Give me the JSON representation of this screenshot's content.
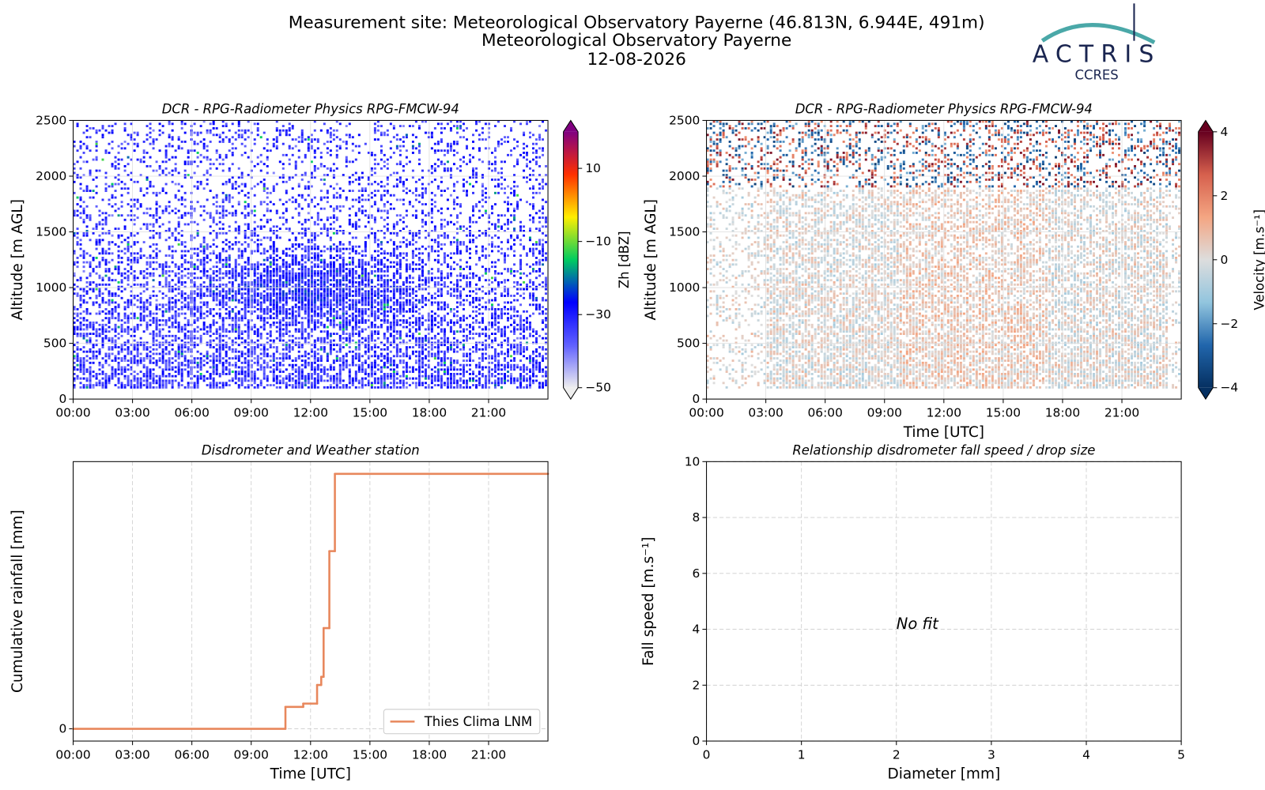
{
  "header": {
    "lines": [
      "Measurement site: Meteorological Observatory Payerne (46.813N, 6.944E, 491m)",
      "Meteorological Observatory Payerne",
      "12-08-2026"
    ]
  },
  "logo": {
    "name": "ACTRIS",
    "sub": "CCRES"
  },
  "chart_data": [
    {
      "type": "heatmap",
      "title": "DCR - RPG-Radiometer Physics RPG-FMCW-94",
      "ylabel": "Altitude [m AGL]",
      "xlim": [
        0,
        24
      ],
      "xticks": [
        {
          "value": 0,
          "label": "00:00"
        },
        {
          "value": 3,
          "label": "03:00"
        },
        {
          "value": 6,
          "label": "06:00"
        },
        {
          "value": 9,
          "label": "09:00"
        },
        {
          "value": 12,
          "label": "12:00"
        },
        {
          "value": 15,
          "label": "15:00"
        },
        {
          "value": 18,
          "label": "18:00"
        },
        {
          "value": 21,
          "label": "21:00"
        }
      ],
      "ylim": [
        0,
        2500
      ],
      "yticks": [
        0,
        500,
        1000,
        1500,
        2000,
        2500
      ],
      "grid": true,
      "colorbar": {
        "label": "Zh [dBZ]",
        "lim": [
          -50,
          20
        ],
        "ticks": [
          10,
          {
            "value": -10,
            "label": "−10"
          },
          {
            "value": -30,
            "label": "−30"
          },
          {
            "value": -50,
            "label": "−50"
          }
        ],
        "colors": [
          "#eeeeee",
          "#6060ff",
          "#0000ff",
          "#00cc60",
          "#ffee00",
          "#ff3000",
          "#800080"
        ]
      }
    },
    {
      "type": "heatmap",
      "title": "DCR - RPG-Radiometer Physics RPG-FMCW-94",
      "ylabel": "Altitude [m AGL]",
      "xlabel": "Time [UTC]",
      "xlim": [
        0,
        24
      ],
      "xticks": [
        {
          "value": 0,
          "label": "00:00"
        },
        {
          "value": 3,
          "label": "03:00"
        },
        {
          "value": 6,
          "label": "06:00"
        },
        {
          "value": 9,
          "label": "09:00"
        },
        {
          "value": 12,
          "label": "12:00"
        },
        {
          "value": 15,
          "label": "15:00"
        },
        {
          "value": 18,
          "label": "18:00"
        },
        {
          "value": 21,
          "label": "21:00"
        }
      ],
      "ylim": [
        0,
        2500
      ],
      "yticks": [
        0,
        500,
        1000,
        1500,
        2000,
        2500
      ],
      "grid": true,
      "colorbar": {
        "label": "Velocity [m.s⁻¹]",
        "lim": [
          -4,
          4
        ],
        "ticks": [
          4,
          2,
          0,
          {
            "value": -2,
            "label": "−2"
          },
          {
            "value": -4,
            "label": "−4"
          }
        ],
        "colors": [
          "#053061",
          "#2166ac",
          "#92c5de",
          "#dddddd",
          "#f4a582",
          "#d6604d",
          "#67001f"
        ]
      }
    },
    {
      "type": "line",
      "title": "Disdrometer and Weather station",
      "xlabel": "Time [UTC]",
      "ylabel": "Cumulative rainfall [mm]",
      "xlim": [
        0,
        24
      ],
      "xticks": [
        {
          "value": 0,
          "label": "00:00"
        },
        {
          "value": 3,
          "label": "03:00"
        },
        {
          "value": 6,
          "label": "06:00"
        },
        {
          "value": 9,
          "label": "09:00"
        },
        {
          "value": 12,
          "label": "12:00"
        },
        {
          "value": 15,
          "label": "15:00"
        },
        {
          "value": 18,
          "label": "18:00"
        },
        {
          "value": 21,
          "label": "21:00"
        }
      ],
      "ylim": [
        -0.48,
        10.48
      ],
      "yticks": [
        0
      ],
      "grid": true,
      "grid_style": "dashed",
      "legend": "lower right",
      "x": [
        0,
        10.73,
        11.63,
        12.33,
        12.54,
        12.66,
        12.95,
        13.23,
        24
      ],
      "series": [
        {
          "name": "Thies Clima LNM",
          "color": "#e8875c",
          "drawstyle": "steps-post",
          "values": [
            0,
            0.86,
            0.99,
            1.72,
            2.04,
            3.95,
            6.97,
            10,
            10
          ]
        }
      ]
    },
    {
      "type": "scatter",
      "title": "Relationship disdrometer fall speed / drop size",
      "xlabel": "Diameter [mm]",
      "ylabel": "Fall speed [m.s⁻¹]",
      "xlim": [
        0,
        5
      ],
      "xticks": [
        0,
        1,
        2,
        3,
        4,
        5
      ],
      "ylim": [
        0,
        10
      ],
      "yticks": [
        0,
        2,
        4,
        6,
        8,
        10
      ],
      "grid": true,
      "grid_style": "dashed",
      "annotation": "No fit"
    }
  ]
}
